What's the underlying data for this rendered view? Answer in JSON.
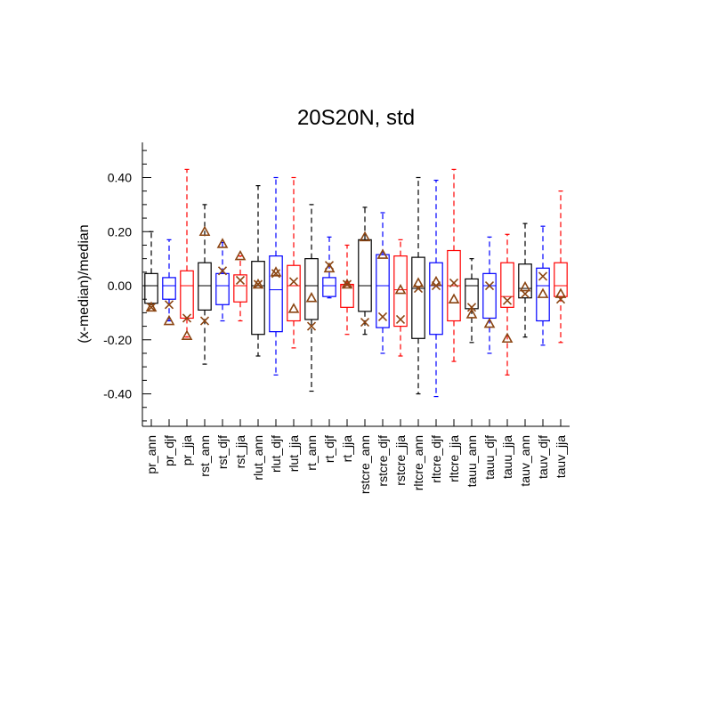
{
  "chart_data": {
    "type": "box",
    "title": "20S20N, std",
    "ylabel": "(x-median)/median",
    "xlabel": "",
    "ylim": [
      -0.52,
      0.53
    ],
    "yticks": [
      -0.4,
      -0.2,
      0.0,
      0.2,
      0.4
    ],
    "ytick_labels": [
      "-0.40",
      "-0.20",
      "0.00",
      "0.20",
      "0.40"
    ],
    "colors": {
      "ann": "#000000",
      "djf": "#0000ff",
      "jja": "#ff0000",
      "marker": "#8b4513"
    },
    "categories": [
      "pr_ann",
      "pr_djf",
      "pr_jja",
      "rst_ann",
      "rst_djf",
      "rst_jja",
      "rlut_ann",
      "rlut_djf",
      "rlut_jja",
      "rt_ann",
      "rt_djf",
      "rt_jja",
      "rstcre_ann",
      "rstcre_djf",
      "rstcre_jja",
      "rltcre_ann",
      "rltcre_djf",
      "rltcre_jja",
      "tauu_ann",
      "tauu_djf",
      "tauu_jja",
      "tauv_ann",
      "tauv_djf",
      "tauv_jja"
    ],
    "boxes": [
      {
        "name": "pr_ann",
        "season": "ann",
        "whislo": -0.07,
        "q1": -0.065,
        "med": 0.0,
        "q3": 0.045,
        "whishi": 0.2,
        "tri": -0.08,
        "x": -0.08
      },
      {
        "name": "pr_djf",
        "season": "djf",
        "whislo": -0.13,
        "q1": -0.05,
        "med": 0.0,
        "q3": 0.03,
        "whishi": 0.17,
        "tri": -0.13,
        "x": -0.07
      },
      {
        "name": "pr_jja",
        "season": "jja",
        "whislo": -0.19,
        "q1": -0.12,
        "med": 0.0,
        "q3": 0.055,
        "whishi": 0.43,
        "tri": -0.185,
        "x": -0.12
      },
      {
        "name": "rst_ann",
        "season": "ann",
        "whislo": -0.29,
        "q1": -0.09,
        "med": 0.0,
        "q3": 0.085,
        "whishi": 0.3,
        "tri": 0.2,
        "x": -0.13
      },
      {
        "name": "rst_djf",
        "season": "djf",
        "whislo": -0.13,
        "q1": -0.07,
        "med": 0.0,
        "q3": 0.045,
        "whishi": 0.16,
        "tri": 0.155,
        "x": 0.055
      },
      {
        "name": "rst_jja",
        "season": "jja",
        "whislo": -0.13,
        "q1": -0.06,
        "med": 0.0,
        "q3": 0.04,
        "whishi": 0.11,
        "tri": 0.11,
        "x": 0.02
      },
      {
        "name": "rlut_ann",
        "season": "ann",
        "whislo": -0.26,
        "q1": -0.18,
        "med": 0.0,
        "q3": 0.09,
        "whishi": 0.37,
        "tri": 0.005,
        "x": 0.005
      },
      {
        "name": "rlut_djf",
        "season": "djf",
        "whislo": -0.33,
        "q1": -0.17,
        "med": -0.015,
        "q3": 0.11,
        "whishi": 0.4,
        "tri": 0.05,
        "x": 0.045
      },
      {
        "name": "rlut_jja",
        "season": "jja",
        "whislo": -0.23,
        "q1": -0.13,
        "med": 0.0,
        "q3": 0.075,
        "whishi": 0.4,
        "tri": -0.085,
        "x": 0.015
      },
      {
        "name": "rt_ann",
        "season": "ann",
        "whislo": -0.39,
        "q1": -0.125,
        "med": 0.0,
        "q3": 0.1,
        "whishi": 0.3,
        "tri": -0.045,
        "x": -0.15
      },
      {
        "name": "rt_djf",
        "season": "djf",
        "whislo": -0.045,
        "q1": -0.04,
        "med": 0.0,
        "q3": 0.03,
        "whishi": 0.18,
        "tri": 0.065,
        "x": 0.075
      },
      {
        "name": "rt_jja",
        "season": "jja",
        "whislo": -0.18,
        "q1": -0.08,
        "med": 0.0,
        "q3": 0.005,
        "whishi": 0.15,
        "tri": 0.005,
        "x": 0.005
      },
      {
        "name": "rstcre_ann",
        "season": "ann",
        "whislo": -0.18,
        "q1": -0.095,
        "med": 0.0,
        "q3": 0.17,
        "whishi": 0.29,
        "tri": 0.18,
        "x": -0.135
      },
      {
        "name": "rstcre_djf",
        "season": "djf",
        "whislo": -0.25,
        "q1": -0.155,
        "med": 0.0,
        "q3": 0.115,
        "whishi": 0.27,
        "tri": 0.115,
        "x": -0.115
      },
      {
        "name": "rstcre_jja",
        "season": "jja",
        "whislo": -0.26,
        "q1": -0.15,
        "med": -0.015,
        "q3": 0.11,
        "whishi": 0.17,
        "tri": -0.015,
        "x": -0.125
      },
      {
        "name": "rltcre_ann",
        "season": "ann",
        "whislo": -0.4,
        "q1": -0.195,
        "med": -0.01,
        "q3": 0.105,
        "whishi": 0.4,
        "tri": 0.01,
        "x": -0.01
      },
      {
        "name": "rltcre_djf",
        "season": "djf",
        "whislo": -0.41,
        "q1": -0.18,
        "med": 0.0,
        "q3": 0.085,
        "whishi": 0.39,
        "tri": 0.015,
        "x": 0.0
      },
      {
        "name": "rltcre_jja",
        "season": "jja",
        "whislo": -0.28,
        "q1": -0.13,
        "med": 0.0,
        "q3": 0.13,
        "whishi": 0.43,
        "tri": -0.05,
        "x": 0.01
      },
      {
        "name": "tauu_ann",
        "season": "ann",
        "whislo": -0.21,
        "q1": -0.085,
        "med": 0.0,
        "q3": 0.025,
        "whishi": 0.1,
        "tri": -0.105,
        "x": -0.08
      },
      {
        "name": "tauu_djf",
        "season": "djf",
        "whislo": -0.25,
        "q1": -0.12,
        "med": 0.0,
        "q3": 0.045,
        "whishi": 0.18,
        "tri": -0.14,
        "x": 0.0
      },
      {
        "name": "tauu_jja",
        "season": "jja",
        "whislo": -0.33,
        "q1": -0.08,
        "med": -0.04,
        "q3": 0.085,
        "whishi": 0.19,
        "tri": -0.195,
        "x": -0.055
      },
      {
        "name": "tauv_ann",
        "season": "ann",
        "whislo": -0.19,
        "q1": -0.045,
        "med": -0.01,
        "q3": 0.08,
        "whishi": 0.23,
        "tri": -0.005,
        "x": -0.03
      },
      {
        "name": "tauv_djf",
        "season": "djf",
        "whislo": -0.22,
        "q1": -0.13,
        "med": 0.0,
        "q3": 0.065,
        "whishi": 0.22,
        "tri": -0.03,
        "x": 0.035
      },
      {
        "name": "tauv_jja",
        "season": "jja",
        "whislo": -0.21,
        "q1": -0.04,
        "med": 0.0,
        "q3": 0.085,
        "whishi": 0.35,
        "tri": -0.03,
        "x": -0.05
      }
    ]
  }
}
